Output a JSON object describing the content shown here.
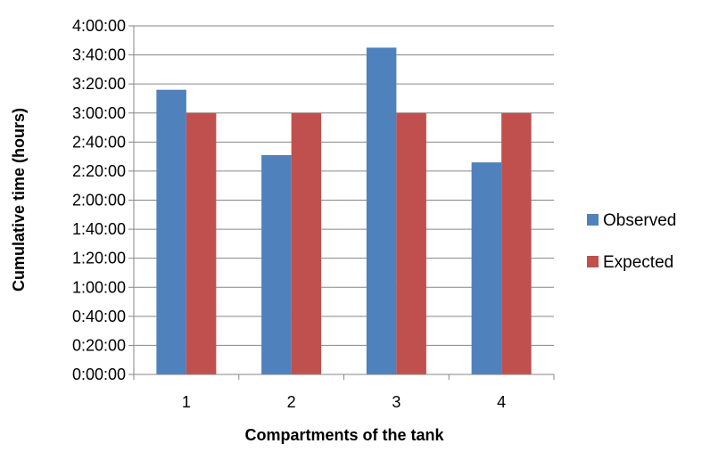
{
  "chart_data": {
    "type": "bar",
    "categories": [
      "1",
      "2",
      "3",
      "4"
    ],
    "series": [
      {
        "name": "Observed",
        "values": [
          "3:16:00",
          "2:31:00",
          "3:45:00",
          "2:26:00"
        ],
        "color": "#4F81BD"
      },
      {
        "name": "Expected",
        "values": [
          "3:00:00",
          "3:00:00",
          "3:00:00",
          "3:00:00"
        ],
        "color": "#C0504D"
      }
    ],
    "title": "",
    "xlabel": "Compartments of the tank",
    "ylabel": "Cumulative time (hours)",
    "ylim": [
      "0:00:00",
      "4:00:00"
    ],
    "yticks": [
      "0:00:00",
      "0:20:00",
      "0:40:00",
      "1:00:00",
      "1:20:00",
      "1:40:00",
      "2:00:00",
      "2:20:00",
      "2:40:00",
      "3:00:00",
      "3:20:00",
      "3:40:00",
      "4:00:00"
    ],
    "grid": true,
    "legend": "right"
  }
}
